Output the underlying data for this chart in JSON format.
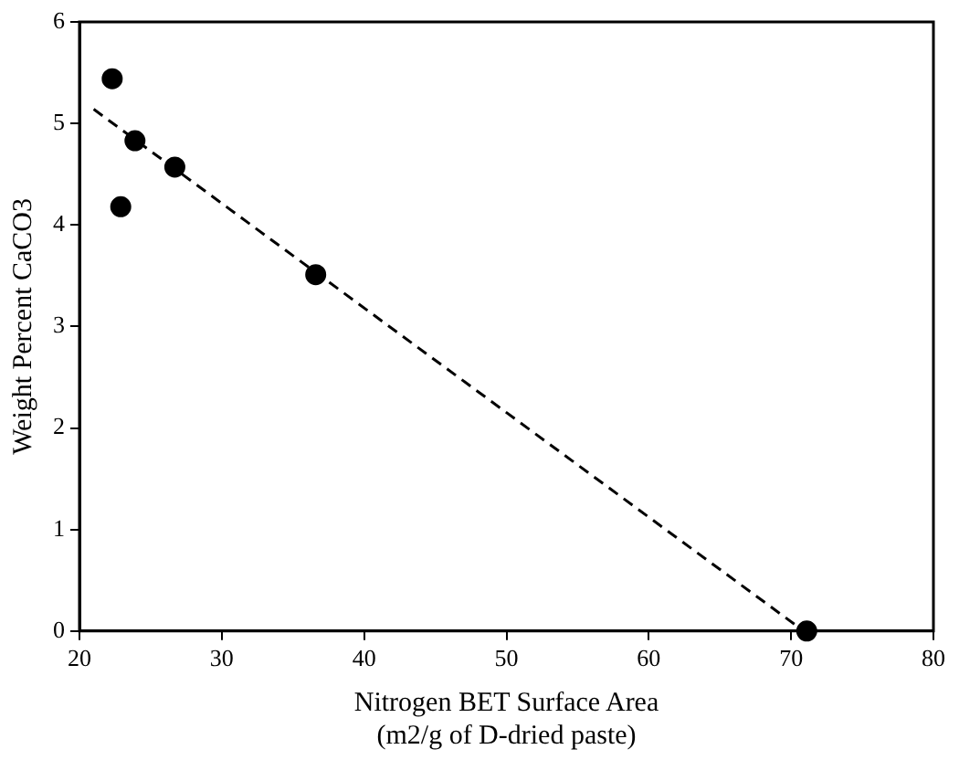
{
  "chart_data": {
    "type": "scatter",
    "xlabel": "Nitrogen BET Surface Area\n(m2/g of D-dried paste)",
    "ylabel": "Weight Percent CaCO3",
    "series": [
      {
        "color": "#000000",
        "marker": "circle",
        "x": [
          22.3,
          23.9,
          22.9,
          26.7,
          36.6,
          71.1
        ],
        "values": [
          5.44,
          4.83,
          4.18,
          4.57,
          3.51,
          0
        ]
      },
      {
        "type": "line",
        "color": "#000000",
        "line_style": "dashed",
        "marker": "none",
        "x": [
          21,
          70.5
        ],
        "values": [
          5.14,
          0.04
        ]
      }
    ],
    "xlim": [
      20,
      80
    ],
    "xticks": [
      20,
      30,
      40,
      50,
      60,
      70,
      80
    ],
    "ylim": [
      0,
      6
    ],
    "yticks": [
      0,
      1,
      2,
      3,
      4,
      5,
      6
    ],
    "grid": false,
    "legend": false
  }
}
